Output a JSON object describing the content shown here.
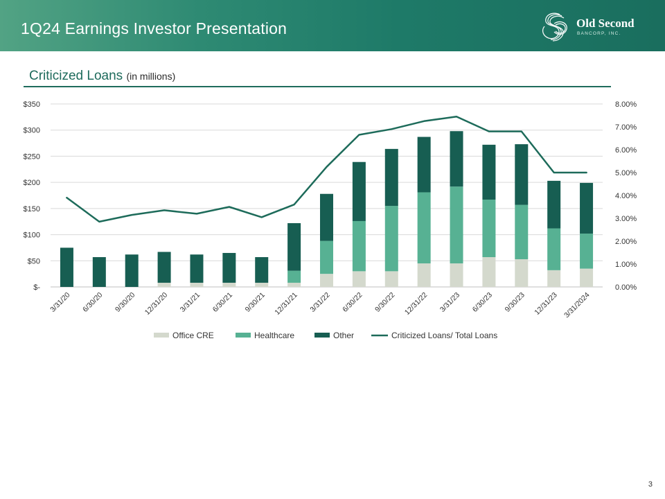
{
  "header": {
    "title": "1Q24 Earnings Investor Presentation"
  },
  "logo": {
    "name": "Old Second",
    "sub": "BANCORP, INC."
  },
  "section": {
    "title": "Criticized Loans",
    "subtitle": "(in millions)"
  },
  "page_number": "3",
  "colors": {
    "office": "#d4d9cd",
    "healthcare": "#57b193",
    "other": "#175e52",
    "line": "#1d6b5a",
    "header": "#1e7a68"
  },
  "chart_data": {
    "type": "bar",
    "stacked": true,
    "categories": [
      "3/31/20",
      "6/30/20",
      "9/30/20",
      "12/31/20",
      "3/31/21",
      "6/30/21",
      "9/30/21",
      "12/31/21",
      "3/31/22",
      "6/30/22",
      "9/30/22",
      "12/31/22",
      "3/31/23",
      "6/30/23",
      "9/30/23",
      "12/31/23",
      "3/31/2024"
    ],
    "series": [
      {
        "name": "Office CRE",
        "values": [
          0,
          0,
          0,
          8,
          8,
          8,
          8,
          8,
          25,
          30,
          30,
          45,
          45,
          57,
          53,
          32,
          35
        ]
      },
      {
        "name": "Healthcare",
        "values": [
          0,
          0,
          0,
          0,
          0,
          0,
          0,
          23,
          63,
          96,
          125,
          136,
          147,
          110,
          104,
          80,
          67
        ]
      },
      {
        "name": "Other",
        "values": [
          75,
          57,
          62,
          59,
          54,
          57,
          49,
          91,
          90,
          113,
          109,
          106,
          106,
          105,
          116,
          91,
          97
        ]
      }
    ],
    "line": {
      "name": "Criticized Loans/ Total Loans",
      "values": [
        3.9,
        2.85,
        3.15,
        3.35,
        3.2,
        3.5,
        3.05,
        3.6,
        5.25,
        6.65,
        6.9,
        7.25,
        7.45,
        6.8,
        6.8,
        5.0,
        5.0
      ]
    },
    "y_left": {
      "ticks": [
        "$-",
        "$50",
        "$100",
        "$150",
        "$200",
        "$250",
        "$300",
        "$350"
      ],
      "min": 0,
      "max": 350,
      "step": 50
    },
    "y_right": {
      "ticks": [
        "0.00%",
        "1.00%",
        "2.00%",
        "3.00%",
        "4.00%",
        "5.00%",
        "6.00%",
        "7.00%",
        "8.00%"
      ],
      "min": 0,
      "max": 8,
      "step": 1
    },
    "legend": [
      "Office CRE",
      "Healthcare",
      "Other",
      "Criticized Loans/ Total Loans"
    ],
    "legend_position": "bottom",
    "grid": true
  }
}
